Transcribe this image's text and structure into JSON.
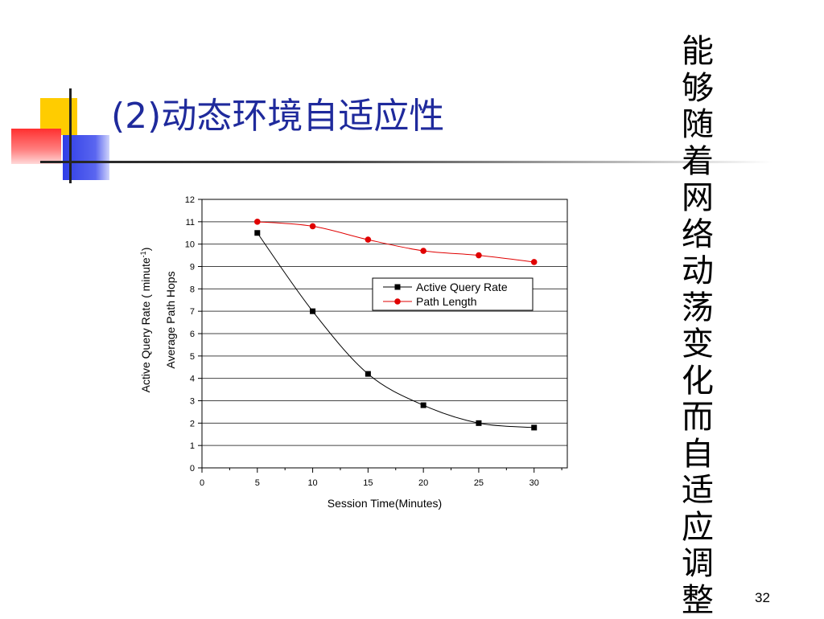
{
  "slide": {
    "title": "(2)动态环境自适应性",
    "side_text": "能够随着网络动荡变化而自适应调整",
    "page_number": "32",
    "colors": {
      "title": "#1f2a9c",
      "accent_yellow": "#ffcc00",
      "accent_blue": "#3340e0",
      "accent_red": "#ff4040"
    }
  },
  "chart_data": {
    "type": "line",
    "x": [
      5,
      10,
      15,
      20,
      25,
      30
    ],
    "series": [
      {
        "name": "Active Query Rate",
        "values": [
          10.5,
          7.0,
          4.2,
          2.8,
          2.0,
          1.8
        ],
        "color": "#000000",
        "marker": "square"
      },
      {
        "name": "Path Length",
        "values": [
          11.0,
          10.8,
          10.2,
          9.7,
          9.5,
          9.2
        ],
        "color": "#e00000",
        "marker": "circle"
      }
    ],
    "xlabel": "Session Time(Minutes)",
    "ylabel_1": "Active Query Rate ( minute",
    "ylabel_1_sup": "-1",
    "ylabel_1_end": ")",
    "ylabel_2": "Average Path Hops",
    "xlim": [
      0,
      33
    ],
    "ylim": [
      0,
      12
    ],
    "x_ticks": [
      "0",
      "5",
      "10",
      "15",
      "20",
      "25",
      "30"
    ],
    "y_ticks": [
      "0",
      "1",
      "2",
      "3",
      "4",
      "5",
      "6",
      "7",
      "8",
      "9",
      "10",
      "11",
      "12"
    ],
    "grid": "horizontal",
    "legend_position": "upper-right-inside"
  }
}
